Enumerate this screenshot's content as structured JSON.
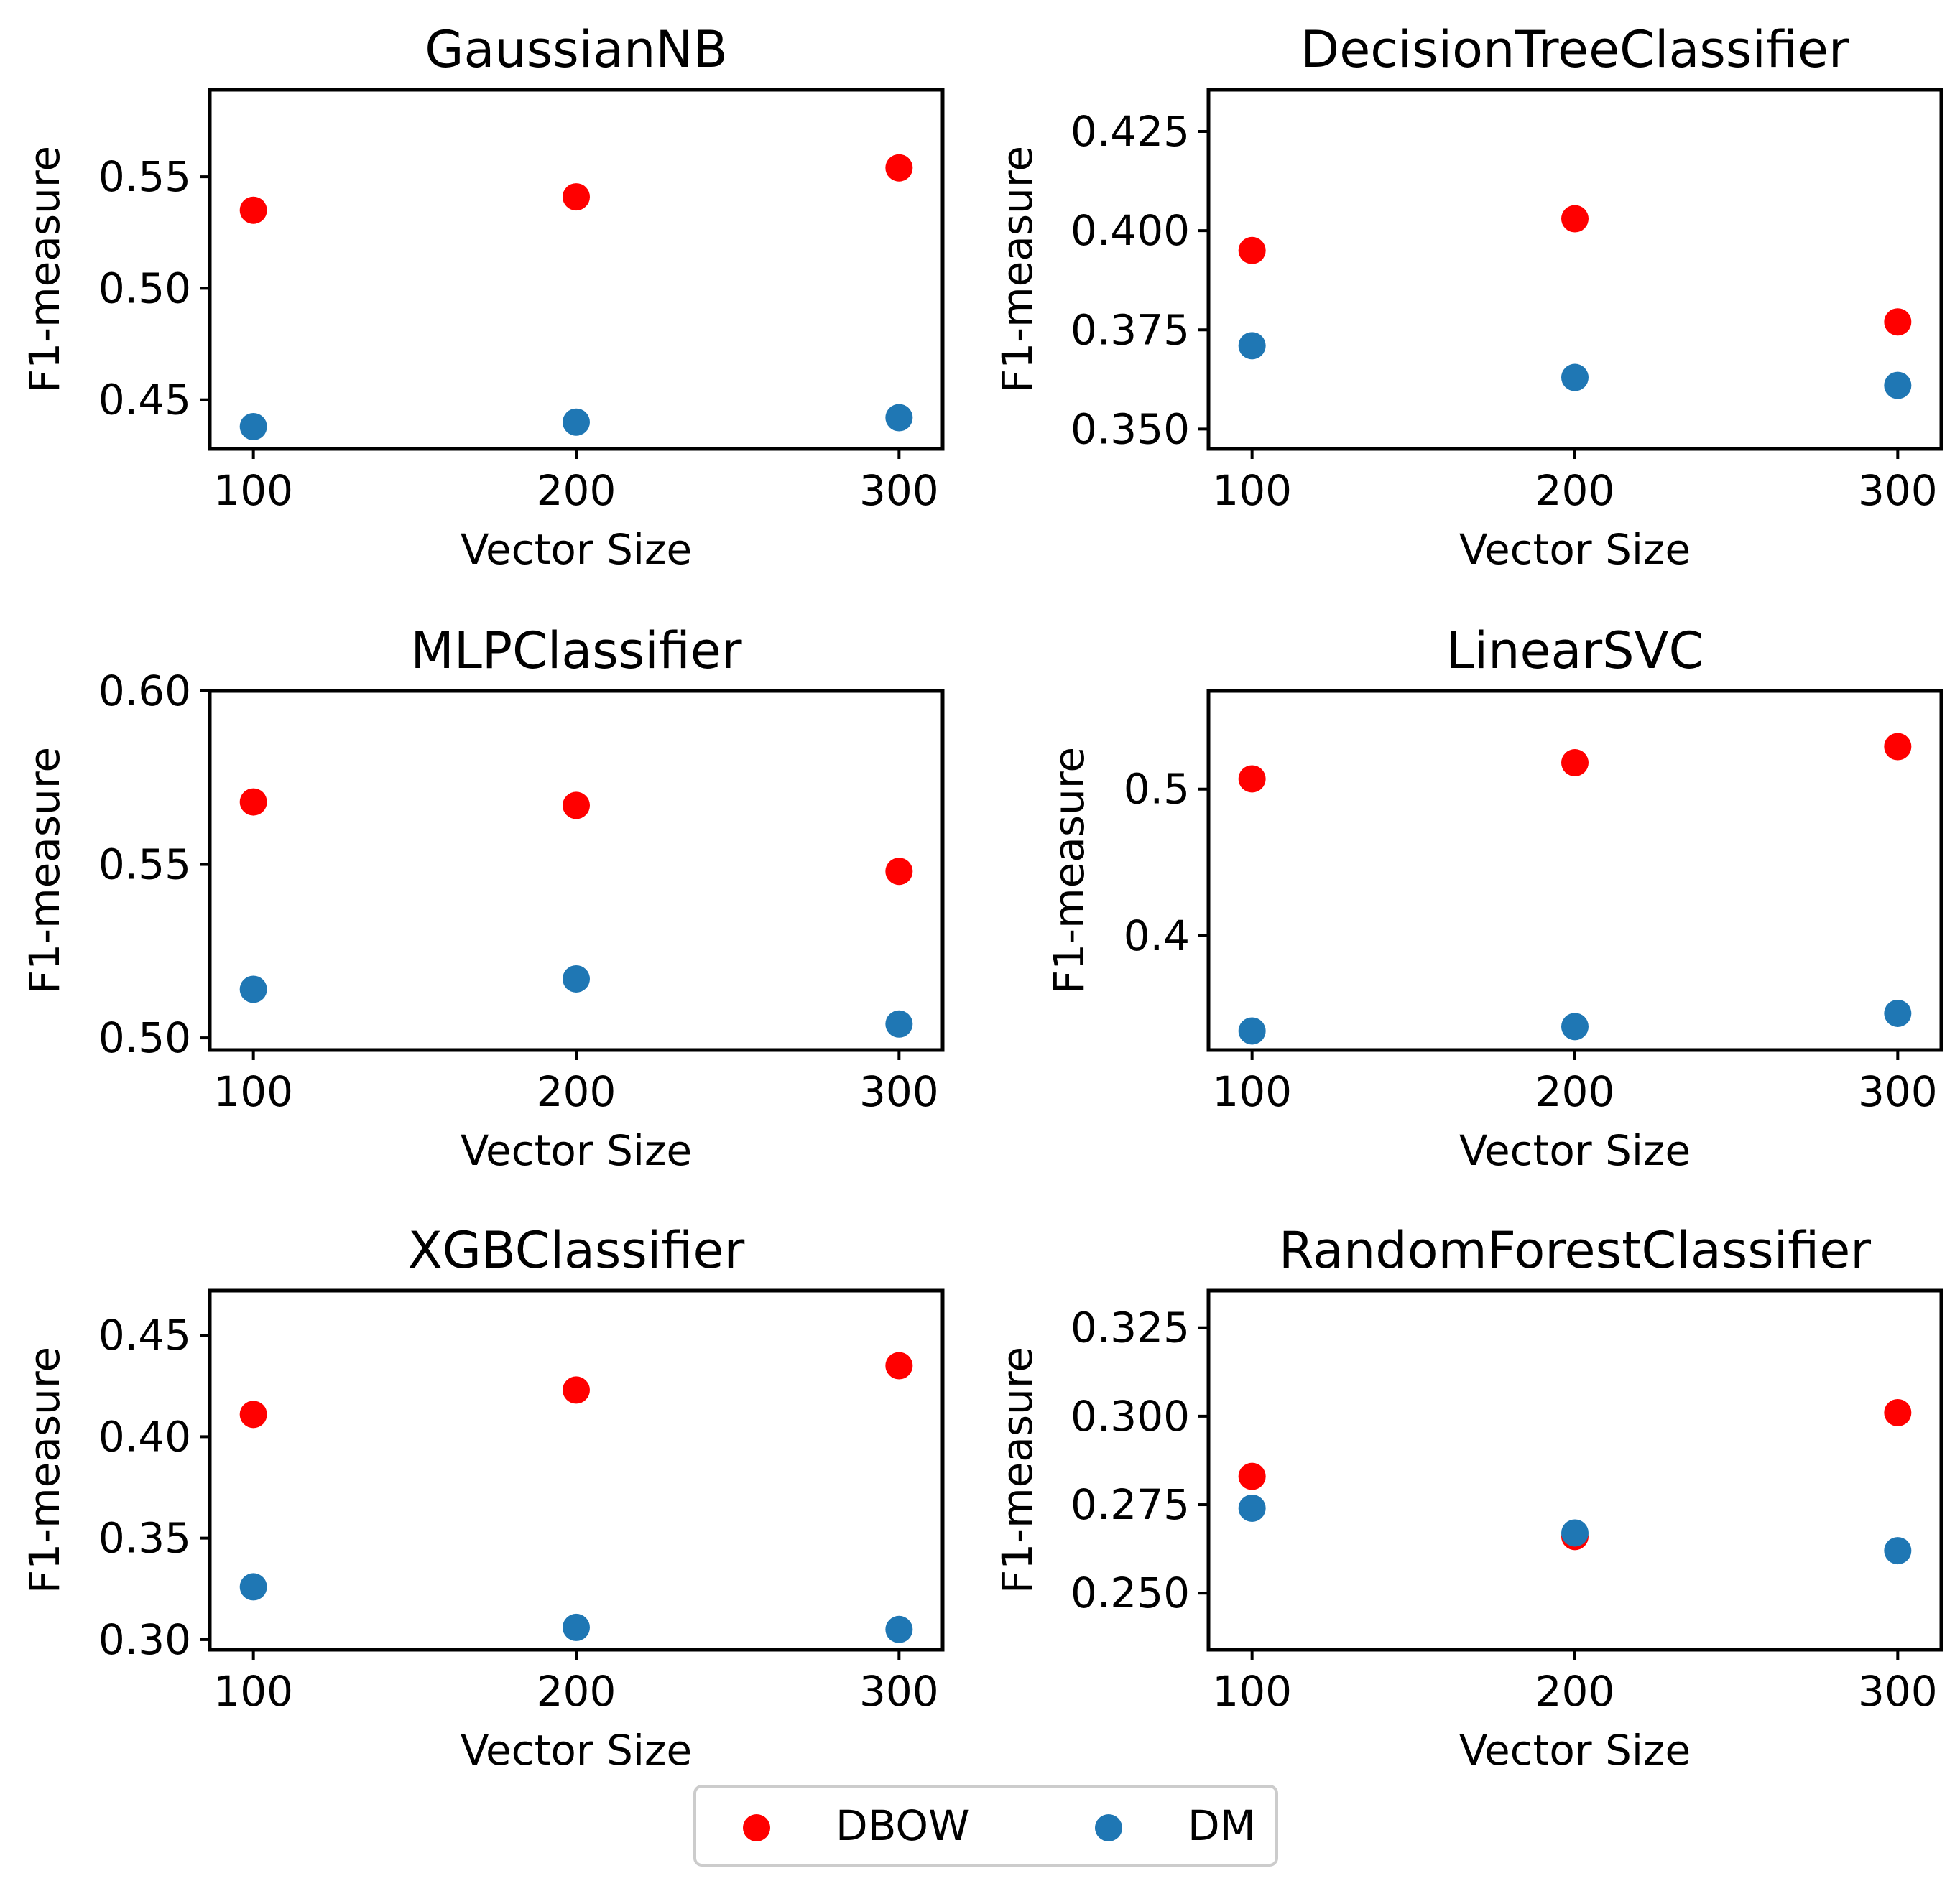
{
  "colors": {
    "DBOW": "#ff0000",
    "DM": "#1f77b4"
  },
  "legend": {
    "placement": "bottom-center",
    "entries": [
      "DBOW",
      "DM"
    ]
  },
  "chart_data": [
    {
      "type": "scatter",
      "title": "GaussianNB",
      "xlabel": "Vector Size",
      "ylabel": "F1-measure",
      "x": [
        100,
        200,
        300
      ],
      "xticks": [
        "100",
        "200",
        "300"
      ],
      "xlim": [
        86.5,
        313.5
      ],
      "ylim": [
        0.428,
        0.589
      ],
      "yticks": [
        0.45,
        0.5,
        0.55
      ],
      "ytick_labels": [
        "0.45",
        "0.50",
        "0.55"
      ],
      "series": [
        {
          "name": "DBOW",
          "values": [
            0.535,
            0.541,
            0.554
          ]
        },
        {
          "name": "DM",
          "values": [
            0.438,
            0.44,
            0.442
          ]
        }
      ]
    },
    {
      "type": "scatter",
      "title": "DecisionTreeClassifier",
      "xlabel": "Vector Size",
      "ylabel": "F1-measure",
      "x": [
        100,
        200,
        300
      ],
      "xticks": [
        "100",
        "200",
        "300"
      ],
      "xlim": [
        86.5,
        313.5
      ],
      "ylim": [
        0.345,
        0.4355
      ],
      "yticks": [
        0.35,
        0.375,
        0.4,
        0.425
      ],
      "ytick_labels": [
        "0.350",
        "0.375",
        "0.400",
        "0.425"
      ],
      "series": [
        {
          "name": "DBOW",
          "values": [
            0.395,
            0.403,
            0.377
          ]
        },
        {
          "name": "DM",
          "values": [
            0.371,
            0.363,
            0.361
          ]
        }
      ]
    },
    {
      "type": "scatter",
      "title": "MLPClassifier",
      "xlabel": "Vector Size",
      "ylabel": "F1-measure",
      "x": [
        100,
        200,
        300
      ],
      "xticks": [
        "100",
        "200",
        "300"
      ],
      "xlim": [
        86.5,
        313.5
      ],
      "ylim": [
        0.4965,
        0.6
      ],
      "yticks": [
        0.5,
        0.55,
        0.6
      ],
      "ytick_labels": [
        "0.50",
        "0.55",
        "0.60"
      ],
      "series": [
        {
          "name": "DBOW",
          "values": [
            0.568,
            0.567,
            0.548
          ]
        },
        {
          "name": "DM",
          "values": [
            0.514,
            0.517,
            0.504
          ]
        }
      ]
    },
    {
      "type": "scatter",
      "title": "LinearSVC",
      "xlabel": "Vector Size",
      "ylabel": "F1-measure",
      "x": [
        100,
        200,
        300
      ],
      "xticks": [
        "100",
        "200",
        "300"
      ],
      "xlim": [
        86.5,
        313.5
      ],
      "ylim": [
        0.322,
        0.567
      ],
      "yticks": [
        0.4,
        0.5
      ],
      "ytick_labels": [
        "0.4",
        "0.5"
      ],
      "series": [
        {
          "name": "DBOW",
          "values": [
            0.507,
            0.518,
            0.529
          ]
        },
        {
          "name": "DM",
          "values": [
            0.335,
            0.338,
            0.347
          ]
        }
      ]
    },
    {
      "type": "scatter",
      "title": "XGBClassifier",
      "xlabel": "Vector Size",
      "ylabel": "F1-measure",
      "x": [
        100,
        200,
        300
      ],
      "xticks": [
        "100",
        "200",
        "300"
      ],
      "xlim": [
        86.5,
        313.5
      ],
      "ylim": [
        0.295,
        0.472
      ],
      "yticks": [
        0.3,
        0.35,
        0.4,
        0.45
      ],
      "ytick_labels": [
        "0.30",
        "0.35",
        "0.40",
        "0.45"
      ],
      "series": [
        {
          "name": "DBOW",
          "values": [
            0.411,
            0.423,
            0.435
          ]
        },
        {
          "name": "DM",
          "values": [
            0.326,
            0.306,
            0.305
          ]
        }
      ]
    },
    {
      "type": "scatter",
      "title": "RandomForestClassifier",
      "xlabel": "Vector Size",
      "ylabel": "F1-measure",
      "x": [
        100,
        200,
        300
      ],
      "xticks": [
        "100",
        "200",
        "300"
      ],
      "xlim": [
        86.5,
        313.5
      ],
      "ylim": [
        0.234,
        0.3355
      ],
      "yticks": [
        0.25,
        0.275,
        0.3,
        0.325
      ],
      "ytick_labels": [
        "0.250",
        "0.275",
        "0.300",
        "0.325"
      ],
      "series": [
        {
          "name": "DBOW",
          "values": [
            0.283,
            0.266,
            0.301
          ]
        },
        {
          "name": "DM",
          "values": [
            0.274,
            0.267,
            0.262
          ]
        }
      ]
    }
  ]
}
